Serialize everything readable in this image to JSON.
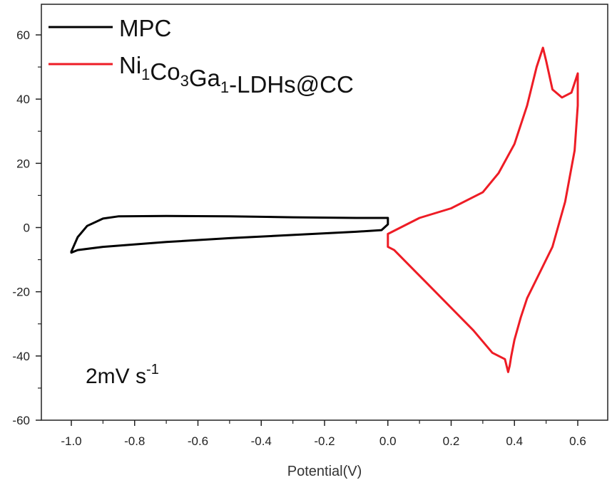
{
  "chart_data": {
    "type": "line",
    "xlabel": "Potential(V)",
    "ylabel": "",
    "xlim": [
      -1.1,
      0.7
    ],
    "ylim": [
      -60,
      65
    ],
    "x_ticks": [
      "-1.0",
      "-0.8",
      "-0.6",
      "-0.4",
      "-0.2",
      "0.0",
      "0.2",
      "0.4",
      "0.6"
    ],
    "y_ticks": [
      "-60",
      "-40",
      "-20",
      "0",
      "20",
      "40",
      "60"
    ],
    "grid": false,
    "legend_position": "top-left",
    "annotation": {
      "text": "2mV s",
      "superscript": "-1"
    },
    "series": [
      {
        "name": "MPC",
        "color": "#000000",
        "x": [
          -1.0,
          -0.98,
          -0.95,
          -0.9,
          -0.85,
          -0.7,
          -0.5,
          -0.3,
          -0.1,
          -0.02,
          0.0,
          0.0,
          -0.02,
          -0.1,
          -0.3,
          -0.5,
          -0.7,
          -0.9,
          -0.98,
          -1.0,
          -1.0
        ],
        "y": [
          -7.5,
          -3.0,
          0.5,
          2.8,
          3.5,
          3.6,
          3.5,
          3.2,
          3.0,
          3.0,
          3.0,
          1.0,
          -0.8,
          -1.3,
          -2.3,
          -3.3,
          -4.5,
          -6.0,
          -7.0,
          -7.8,
          -7.5
        ]
      },
      {
        "name": "Ni1Co3Ga1-LDHs@CC",
        "name_parts": [
          {
            "t": "Ni",
            "s": "1"
          },
          {
            "t": "Co",
            "s": "3"
          },
          {
            "t": "Ga",
            "s": "1"
          },
          {
            "t": "-LDHs@CC",
            "s": ""
          }
        ],
        "color": "#ee1c25",
        "x": [
          0.0,
          0.04,
          0.1,
          0.2,
          0.3,
          0.35,
          0.4,
          0.44,
          0.47,
          0.49,
          0.5,
          0.52,
          0.55,
          0.58,
          0.6,
          0.6,
          0.59,
          0.56,
          0.52,
          0.48,
          0.44,
          0.42,
          0.4,
          0.39,
          0.385,
          0.38,
          0.37,
          0.33,
          0.27,
          0.2,
          0.12,
          0.05,
          0.02,
          0.0,
          0.0
        ],
        "y": [
          -2.0,
          0.0,
          3.0,
          6.0,
          11.0,
          17.0,
          26.0,
          38.0,
          50.0,
          56.0,
          52.0,
          43.0,
          40.5,
          42.0,
          48.0,
          38.0,
          24.0,
          8.0,
          -6.0,
          -14.0,
          -22.0,
          -28.0,
          -35.0,
          -40.0,
          -43.0,
          -45.0,
          -41.0,
          -39.0,
          -32.0,
          -25.0,
          -17.0,
          -10.0,
          -7.0,
          -6.0,
          -2.0
        ]
      }
    ]
  }
}
